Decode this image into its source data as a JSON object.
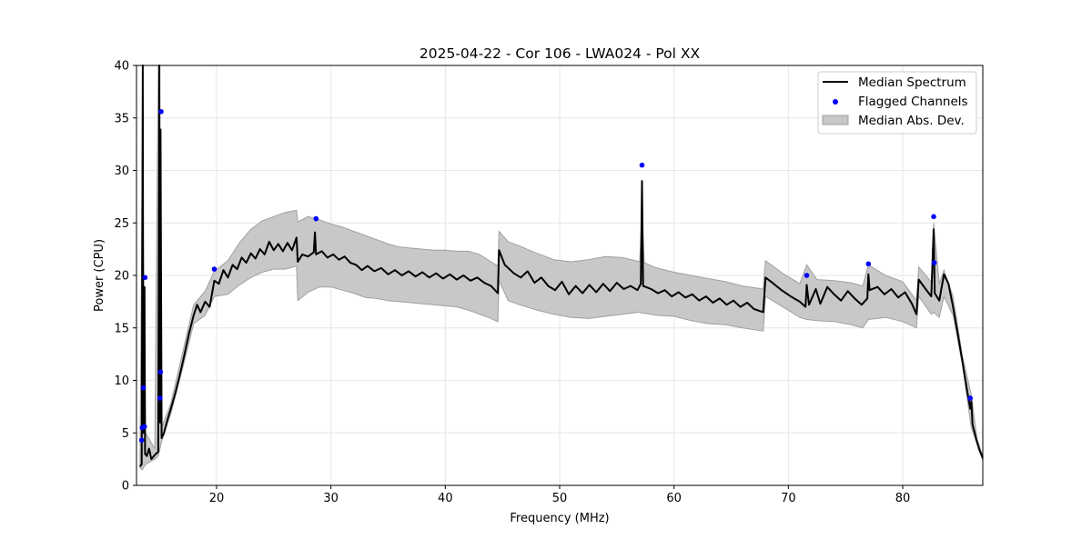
{
  "chart_data": {
    "type": "line",
    "title": "2025-04-22 - Cor 106 - LWA024 - Pol XX",
    "xlabel": "Frequency (MHz)",
    "ylabel": "Power (CPU)",
    "xlim": [
      13.0,
      87.0
    ],
    "ylim": [
      0,
      40
    ],
    "grid": true,
    "x_ticks": [
      20,
      30,
      40,
      50,
      60,
      70,
      80
    ],
    "y_ticks": [
      0,
      5,
      10,
      15,
      20,
      25,
      30,
      35,
      40
    ],
    "legend_position": "top-right",
    "colors": {
      "median": "#000000",
      "flagged": "#0000ff",
      "band": "#c8c8c8",
      "band_edge": "#a0a0a0",
      "grid": "#e6e6e6"
    },
    "series": [
      {
        "name": "Median Spectrum",
        "kind": "line",
        "points": [
          [
            13.3,
            1.8
          ],
          [
            13.45,
            2.0
          ],
          [
            13.55,
            40.0
          ],
          [
            13.6,
            5.0
          ],
          [
            13.7,
            18.9
          ],
          [
            13.75,
            3.0
          ],
          [
            13.9,
            2.8
          ],
          [
            14.1,
            3.5
          ],
          [
            14.3,
            2.5
          ],
          [
            14.6,
            2.9
          ],
          [
            14.9,
            3.2
          ],
          [
            15.0,
            40.0
          ],
          [
            15.05,
            6.0
          ],
          [
            15.1,
            33.9
          ],
          [
            15.2,
            4.5
          ],
          [
            15.4,
            5.0
          ],
          [
            15.7,
            6.2
          ],
          [
            16.0,
            7.3
          ],
          [
            16.4,
            8.8
          ],
          [
            16.8,
            10.6
          ],
          [
            17.2,
            12.5
          ],
          [
            17.6,
            14.5
          ],
          [
            18.0,
            16.2
          ],
          [
            18.3,
            17.2
          ],
          [
            18.6,
            16.5
          ],
          [
            19.0,
            17.5
          ],
          [
            19.4,
            17.0
          ],
          [
            19.8,
            19.5
          ],
          [
            20.2,
            19.2
          ],
          [
            20.6,
            20.5
          ],
          [
            21.0,
            19.8
          ],
          [
            21.4,
            21.0
          ],
          [
            21.8,
            20.6
          ],
          [
            22.2,
            21.7
          ],
          [
            22.6,
            21.2
          ],
          [
            23.0,
            22.1
          ],
          [
            23.4,
            21.6
          ],
          [
            23.8,
            22.5
          ],
          [
            24.2,
            22.0
          ],
          [
            24.6,
            23.2
          ],
          [
            25.0,
            22.4
          ],
          [
            25.4,
            23.0
          ],
          [
            25.8,
            22.3
          ],
          [
            26.2,
            23.1
          ],
          [
            26.6,
            22.4
          ],
          [
            27.0,
            23.6
          ],
          [
            27.1,
            21.3
          ],
          [
            27.5,
            22.0
          ],
          [
            28.0,
            21.8
          ],
          [
            28.5,
            22.2
          ],
          [
            28.6,
            24.1
          ],
          [
            28.7,
            22.0
          ],
          [
            29.2,
            22.3
          ],
          [
            29.7,
            21.7
          ],
          [
            30.2,
            22.0
          ],
          [
            30.7,
            21.5
          ],
          [
            31.2,
            21.8
          ],
          [
            31.7,
            21.2
          ],
          [
            32.2,
            21.0
          ],
          [
            32.7,
            20.5
          ],
          [
            33.2,
            20.9
          ],
          [
            33.8,
            20.4
          ],
          [
            34.4,
            20.7
          ],
          [
            35.0,
            20.1
          ],
          [
            35.6,
            20.5
          ],
          [
            36.2,
            20.0
          ],
          [
            36.8,
            20.4
          ],
          [
            37.4,
            19.9
          ],
          [
            38.0,
            20.3
          ],
          [
            38.6,
            19.8
          ],
          [
            39.2,
            20.2
          ],
          [
            39.8,
            19.7
          ],
          [
            40.4,
            20.1
          ],
          [
            41.0,
            19.6
          ],
          [
            41.6,
            20.0
          ],
          [
            42.2,
            19.5
          ],
          [
            42.8,
            19.8
          ],
          [
            43.4,
            19.3
          ],
          [
            44.0,
            19.0
          ],
          [
            44.6,
            18.3
          ],
          [
            44.7,
            22.4
          ],
          [
            45.2,
            21.0
          ],
          [
            46.0,
            20.2
          ],
          [
            46.6,
            19.8
          ],
          [
            47.2,
            20.4
          ],
          [
            47.8,
            19.3
          ],
          [
            48.4,
            19.8
          ],
          [
            49.0,
            19.0
          ],
          [
            49.6,
            18.6
          ],
          [
            50.2,
            19.4
          ],
          [
            50.8,
            18.2
          ],
          [
            51.4,
            19.0
          ],
          [
            52.0,
            18.3
          ],
          [
            52.6,
            19.1
          ],
          [
            53.2,
            18.4
          ],
          [
            53.8,
            19.2
          ],
          [
            54.4,
            18.5
          ],
          [
            55.0,
            19.3
          ],
          [
            55.6,
            18.7
          ],
          [
            56.2,
            19.0
          ],
          [
            56.8,
            18.6
          ],
          [
            57.1,
            19.2
          ],
          [
            57.2,
            29.0
          ],
          [
            57.3,
            19.0
          ],
          [
            58.0,
            18.7
          ],
          [
            58.6,
            18.3
          ],
          [
            59.2,
            18.6
          ],
          [
            59.8,
            18.0
          ],
          [
            60.4,
            18.4
          ],
          [
            61.0,
            17.9
          ],
          [
            61.6,
            18.2
          ],
          [
            62.2,
            17.6
          ],
          [
            62.8,
            18.0
          ],
          [
            63.4,
            17.4
          ],
          [
            64.0,
            17.8
          ],
          [
            64.6,
            17.2
          ],
          [
            65.2,
            17.6
          ],
          [
            65.8,
            17.0
          ],
          [
            66.4,
            17.4
          ],
          [
            67.0,
            16.8
          ],
          [
            67.8,
            16.5
          ],
          [
            68.0,
            19.8
          ],
          [
            68.6,
            19.3
          ],
          [
            69.4,
            18.6
          ],
          [
            70.2,
            18.0
          ],
          [
            71.0,
            17.5
          ],
          [
            71.5,
            17.0
          ],
          [
            71.6,
            19.1
          ],
          [
            71.8,
            17.2
          ],
          [
            72.4,
            18.7
          ],
          [
            72.8,
            17.3
          ],
          [
            73.4,
            18.9
          ],
          [
            74.0,
            18.2
          ],
          [
            74.6,
            17.6
          ],
          [
            75.2,
            18.5
          ],
          [
            75.8,
            17.8
          ],
          [
            76.4,
            17.2
          ],
          [
            76.9,
            17.8
          ],
          [
            77.0,
            20.1
          ],
          [
            77.1,
            18.6
          ],
          [
            77.8,
            18.9
          ],
          [
            78.4,
            18.2
          ],
          [
            79.0,
            18.7
          ],
          [
            79.6,
            17.9
          ],
          [
            80.2,
            18.4
          ],
          [
            80.8,
            17.3
          ],
          [
            81.2,
            16.3
          ],
          [
            81.4,
            19.6
          ],
          [
            82.0,
            18.7
          ],
          [
            82.5,
            18.0
          ],
          [
            82.7,
            24.4
          ],
          [
            82.8,
            18.3
          ],
          [
            83.2,
            17.6
          ],
          [
            83.6,
            20.1
          ],
          [
            84.0,
            19.2
          ],
          [
            84.4,
            17.0
          ],
          [
            84.8,
            14.5
          ],
          [
            85.2,
            11.9
          ],
          [
            85.6,
            9.2
          ],
          [
            85.9,
            7.3
          ],
          [
            86.0,
            8.0
          ],
          [
            86.1,
            5.8
          ],
          [
            86.4,
            4.5
          ],
          [
            86.7,
            3.4
          ],
          [
            87.0,
            2.6
          ]
        ]
      },
      {
        "name": "Median Abs. Dev.",
        "kind": "band",
        "points": [
          [
            13.3,
            1.7,
            1.9
          ],
          [
            13.5,
            1.5,
            31.0
          ],
          [
            13.8,
            2.0,
            5.0
          ],
          [
            14.6,
            2.5,
            3.5
          ],
          [
            14.9,
            2.8,
            40.0
          ],
          [
            15.2,
            4.2,
            5.5
          ],
          [
            16.0,
            6.8,
            7.8
          ],
          [
            17.0,
            11.0,
            12.5
          ],
          [
            18.0,
            15.4,
            17.2
          ],
          [
            19.0,
            16.2,
            18.5
          ],
          [
            19.8,
            18.0,
            20.4
          ],
          [
            21.0,
            18.2,
            21.4
          ],
          [
            22.0,
            19.1,
            23.1
          ],
          [
            23.0,
            19.8,
            24.4
          ],
          [
            24.0,
            20.3,
            25.2
          ],
          [
            25.0,
            20.6,
            25.6
          ],
          [
            26.0,
            20.6,
            26.0
          ],
          [
            27.0,
            20.9,
            26.2
          ],
          [
            27.1,
            17.6,
            25.1
          ],
          [
            28.0,
            18.4,
            25.6
          ],
          [
            29.0,
            18.9,
            25.3
          ],
          [
            30.0,
            18.9,
            24.9
          ],
          [
            31.0,
            18.6,
            24.6
          ],
          [
            32.0,
            18.3,
            24.2
          ],
          [
            33.0,
            17.9,
            23.8
          ],
          [
            34.0,
            17.8,
            23.4
          ],
          [
            35.0,
            17.6,
            23.0
          ],
          [
            36.0,
            17.5,
            22.7
          ],
          [
            37.0,
            17.4,
            22.6
          ],
          [
            38.0,
            17.3,
            22.5
          ],
          [
            39.0,
            17.2,
            22.4
          ],
          [
            40.0,
            17.1,
            22.4
          ],
          [
            41.0,
            17.0,
            22.3
          ],
          [
            42.0,
            16.7,
            22.3
          ],
          [
            43.0,
            16.3,
            22.0
          ],
          [
            44.0,
            15.9,
            21.3
          ],
          [
            44.6,
            15.6,
            20.9
          ],
          [
            44.7,
            19.5,
            24.2
          ],
          [
            45.5,
            17.6,
            23.2
          ],
          [
            46.5,
            17.2,
            22.8
          ],
          [
            48.0,
            16.7,
            22.1
          ],
          [
            49.5,
            16.3,
            21.5
          ],
          [
            51.0,
            16.0,
            21.3
          ],
          [
            52.5,
            15.9,
            21.5
          ],
          [
            54.0,
            16.1,
            21.8
          ],
          [
            55.5,
            16.3,
            21.7
          ],
          [
            57.0,
            16.5,
            21.3
          ],
          [
            57.2,
            16.4,
            26.0
          ],
          [
            57.4,
            16.4,
            21.2
          ],
          [
            58.5,
            16.2,
            20.7
          ],
          [
            60.0,
            16.1,
            20.3
          ],
          [
            61.5,
            15.7,
            20.0
          ],
          [
            63.0,
            15.4,
            19.7
          ],
          [
            64.5,
            15.3,
            19.4
          ],
          [
            66.0,
            15.0,
            19.0
          ],
          [
            67.8,
            14.7,
            18.7
          ],
          [
            68.0,
            18.0,
            21.4
          ],
          [
            69.5,
            17.0,
            20.2
          ],
          [
            71.0,
            16.0,
            19.2
          ],
          [
            71.6,
            15.8,
            21.0
          ],
          [
            72.5,
            15.7,
            19.6
          ],
          [
            74.0,
            15.6,
            19.5
          ],
          [
            75.5,
            15.3,
            19.3
          ],
          [
            76.5,
            15.0,
            19.0
          ],
          [
            77.0,
            15.8,
            21.0
          ],
          [
            78.5,
            16.0,
            20.0
          ],
          [
            80.0,
            15.6,
            19.4
          ],
          [
            81.2,
            15.0,
            17.6
          ],
          [
            81.4,
            18.0,
            20.8
          ],
          [
            82.5,
            16.3,
            19.4
          ],
          [
            82.7,
            16.5,
            25.0
          ],
          [
            83.2,
            16.0,
            19.2
          ],
          [
            83.6,
            18.0,
            20.5
          ],
          [
            84.4,
            16.2,
            18.0
          ],
          [
            85.2,
            11.6,
            12.4
          ],
          [
            86.0,
            5.5,
            8.6
          ],
          [
            86.5,
            3.9,
            4.4
          ],
          [
            87.0,
            2.4,
            2.8
          ]
        ]
      },
      {
        "name": "Flagged Channels",
        "kind": "scatter",
        "points": [
          [
            13.45,
            4.3
          ],
          [
            13.5,
            5.5
          ],
          [
            13.6,
            9.3
          ],
          [
            13.7,
            5.6
          ],
          [
            13.75,
            19.8
          ],
          [
            15.05,
            8.3
          ],
          [
            15.1,
            10.8
          ],
          [
            15.15,
            35.6
          ],
          [
            19.8,
            20.6
          ],
          [
            28.7,
            25.4
          ],
          [
            57.2,
            30.5
          ],
          [
            71.6,
            20.0
          ],
          [
            77.0,
            21.1
          ],
          [
            82.7,
            25.6
          ],
          [
            82.75,
            21.2
          ],
          [
            85.9,
            8.3
          ]
        ]
      }
    ],
    "legend": [
      "Median Spectrum",
      "Flagged Channels",
      "Median Abs. Dev."
    ]
  }
}
